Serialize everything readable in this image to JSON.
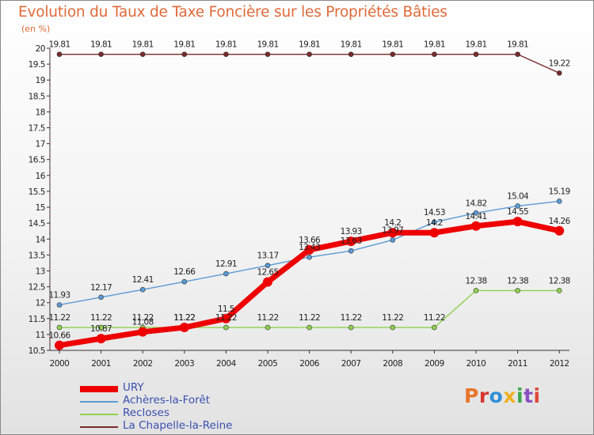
{
  "chart_data": {
    "type": "line",
    "title": "Evolution du Taux de Taxe Foncière sur les Propriétés Bâties",
    "ylabel": "(en %)",
    "ylim": [
      10.5,
      20
    ],
    "yticks": [
      "10.5",
      "11",
      "11.5",
      "12",
      "12.5",
      "13",
      "13.5",
      "14",
      "14.5",
      "15",
      "15.5",
      "16",
      "16.5",
      "17",
      "17.5",
      "18",
      "18.5",
      "19",
      "19.5",
      "20"
    ],
    "categories": [
      "2000",
      "2001",
      "2002",
      "2003",
      "2004",
      "2005",
      "2006",
      "2007",
      "2008",
      "2009",
      "2010",
      "2011",
      "2012"
    ],
    "series": [
      {
        "name": "URY",
        "color": "#ee0000",
        "values": [
          10.66,
          10.87,
          11.08,
          11.22,
          11.5,
          12.65,
          13.66,
          13.93,
          14.2,
          14.2,
          14.41,
          14.55,
          14.26
        ],
        "labels": [
          "10.66",
          "10.87",
          "11.08",
          "11.22",
          "11.5",
          "12.65",
          "13.66",
          "13.93",
          "14.2",
          "14.2",
          "14.41",
          "14.55",
          "14.26"
        ]
      },
      {
        "name": "Achères-la-Forêt",
        "color": "#5b9bd5",
        "values": [
          11.93,
          12.17,
          12.41,
          12.66,
          12.91,
          13.17,
          13.43,
          13.63,
          13.97,
          14.53,
          14.82,
          15.04,
          15.19
        ],
        "labels": [
          "11.93",
          "12.17",
          "12.41",
          "12.66",
          "12.91",
          "13.17",
          "13.43",
          "13.63",
          "13.97",
          "14.53",
          "14.82",
          "15.04",
          "15.19"
        ]
      },
      {
        "name": "Recloses",
        "color": "#8fd14f",
        "values": [
          11.22,
          11.22,
          11.22,
          11.22,
          11.22,
          11.22,
          11.22,
          11.22,
          11.22,
          11.22,
          12.38,
          12.38,
          12.38
        ],
        "labels": [
          "11.22",
          "11.22",
          "11.22",
          "11.22",
          "11.22",
          "11.22",
          "11.22",
          "11.22",
          "11.22",
          "11.22",
          "12.38",
          "12.38",
          "12.38"
        ]
      },
      {
        "name": "La Chapelle-la-Reine",
        "color": "#7a2a2a",
        "values": [
          19.81,
          19.81,
          19.81,
          19.81,
          19.81,
          19.81,
          19.81,
          19.81,
          19.81,
          19.81,
          19.81,
          19.81,
          19.22
        ],
        "labels": [
          "19.81",
          "19.81",
          "19.81",
          "19.81",
          "19.81",
          "19.81",
          "19.81",
          "19.81",
          "19.81",
          "19.81",
          "19.81",
          "19.81",
          "19.22"
        ]
      }
    ],
    "legend_position": "bottom-left",
    "grid": false
  },
  "branding": {
    "logo_text": "Proxiti",
    "logo_colors": [
      "#e8742a",
      "#d6342c",
      "#2f8fd6",
      "#f0b020",
      "#3aa64a",
      "#8a4fc0",
      "#e0473a"
    ]
  }
}
